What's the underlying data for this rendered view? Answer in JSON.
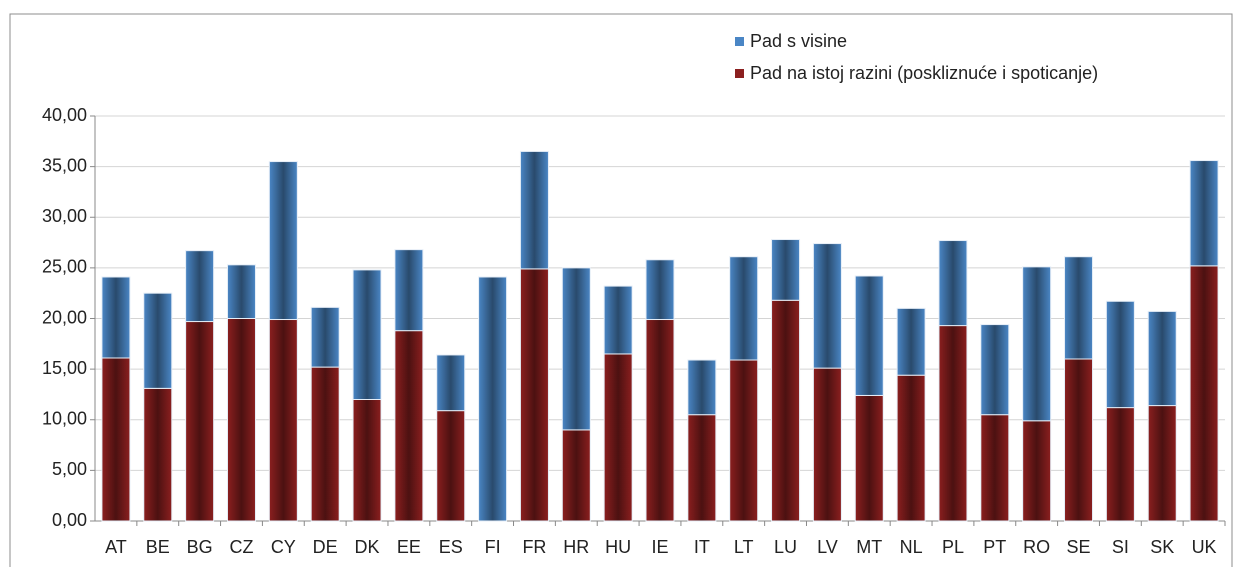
{
  "chart_data": {
    "type": "stacked_bar",
    "categories": [
      "AT",
      "BE",
      "BG",
      "CZ",
      "CY",
      "DE",
      "DK",
      "EE",
      "ES",
      "FI",
      "FR",
      "HR",
      "HU",
      "IE",
      "IT",
      "LT",
      "LU",
      "LV",
      "MT",
      "NL",
      "PL",
      "PT",
      "RO",
      "SE",
      "SI",
      "SK",
      "UK"
    ],
    "series": [
      {
        "name": "Pad na istoj razini (poskliznuće i spoticanje)",
        "color": "#8b1f1f",
        "values": [
          16.1,
          13.1,
          19.7,
          20.0,
          19.9,
          15.2,
          12.0,
          18.8,
          10.9,
          0,
          24.9,
          9.0,
          16.5,
          19.9,
          10.5,
          15.9,
          21.8,
          15.1,
          12.4,
          14.4,
          19.3,
          10.5,
          9.9,
          16.0,
          11.2,
          11.4,
          25.2
        ]
      },
      {
        "name": "Pad s visine",
        "color": "#4a86c5",
        "values": [
          8.0,
          9.4,
          7.0,
          5.3,
          15.6,
          5.9,
          12.8,
          8.0,
          5.5,
          24.1,
          11.6,
          16.0,
          6.7,
          5.9,
          5.4,
          10.2,
          6.0,
          12.3,
          11.8,
          6.6,
          8.4,
          8.9,
          15.2,
          10.1,
          10.5,
          9.3,
          10.4
        ]
      }
    ],
    "ylim": [
      0,
      40
    ],
    "yticks": [
      {
        "value": 0,
        "label": "0,00"
      },
      {
        "value": 5,
        "label": "5,00"
      },
      {
        "value": 10,
        "label": "10,00"
      },
      {
        "value": 15,
        "label": "15,00"
      },
      {
        "value": 20,
        "label": "20,00"
      },
      {
        "value": 25,
        "label": "25,00"
      },
      {
        "value": 30,
        "label": "30,00"
      },
      {
        "value": 35,
        "label": "35,00"
      },
      {
        "value": 40,
        "label": "40,00"
      }
    ],
    "grid": true,
    "legend": "top-right"
  }
}
